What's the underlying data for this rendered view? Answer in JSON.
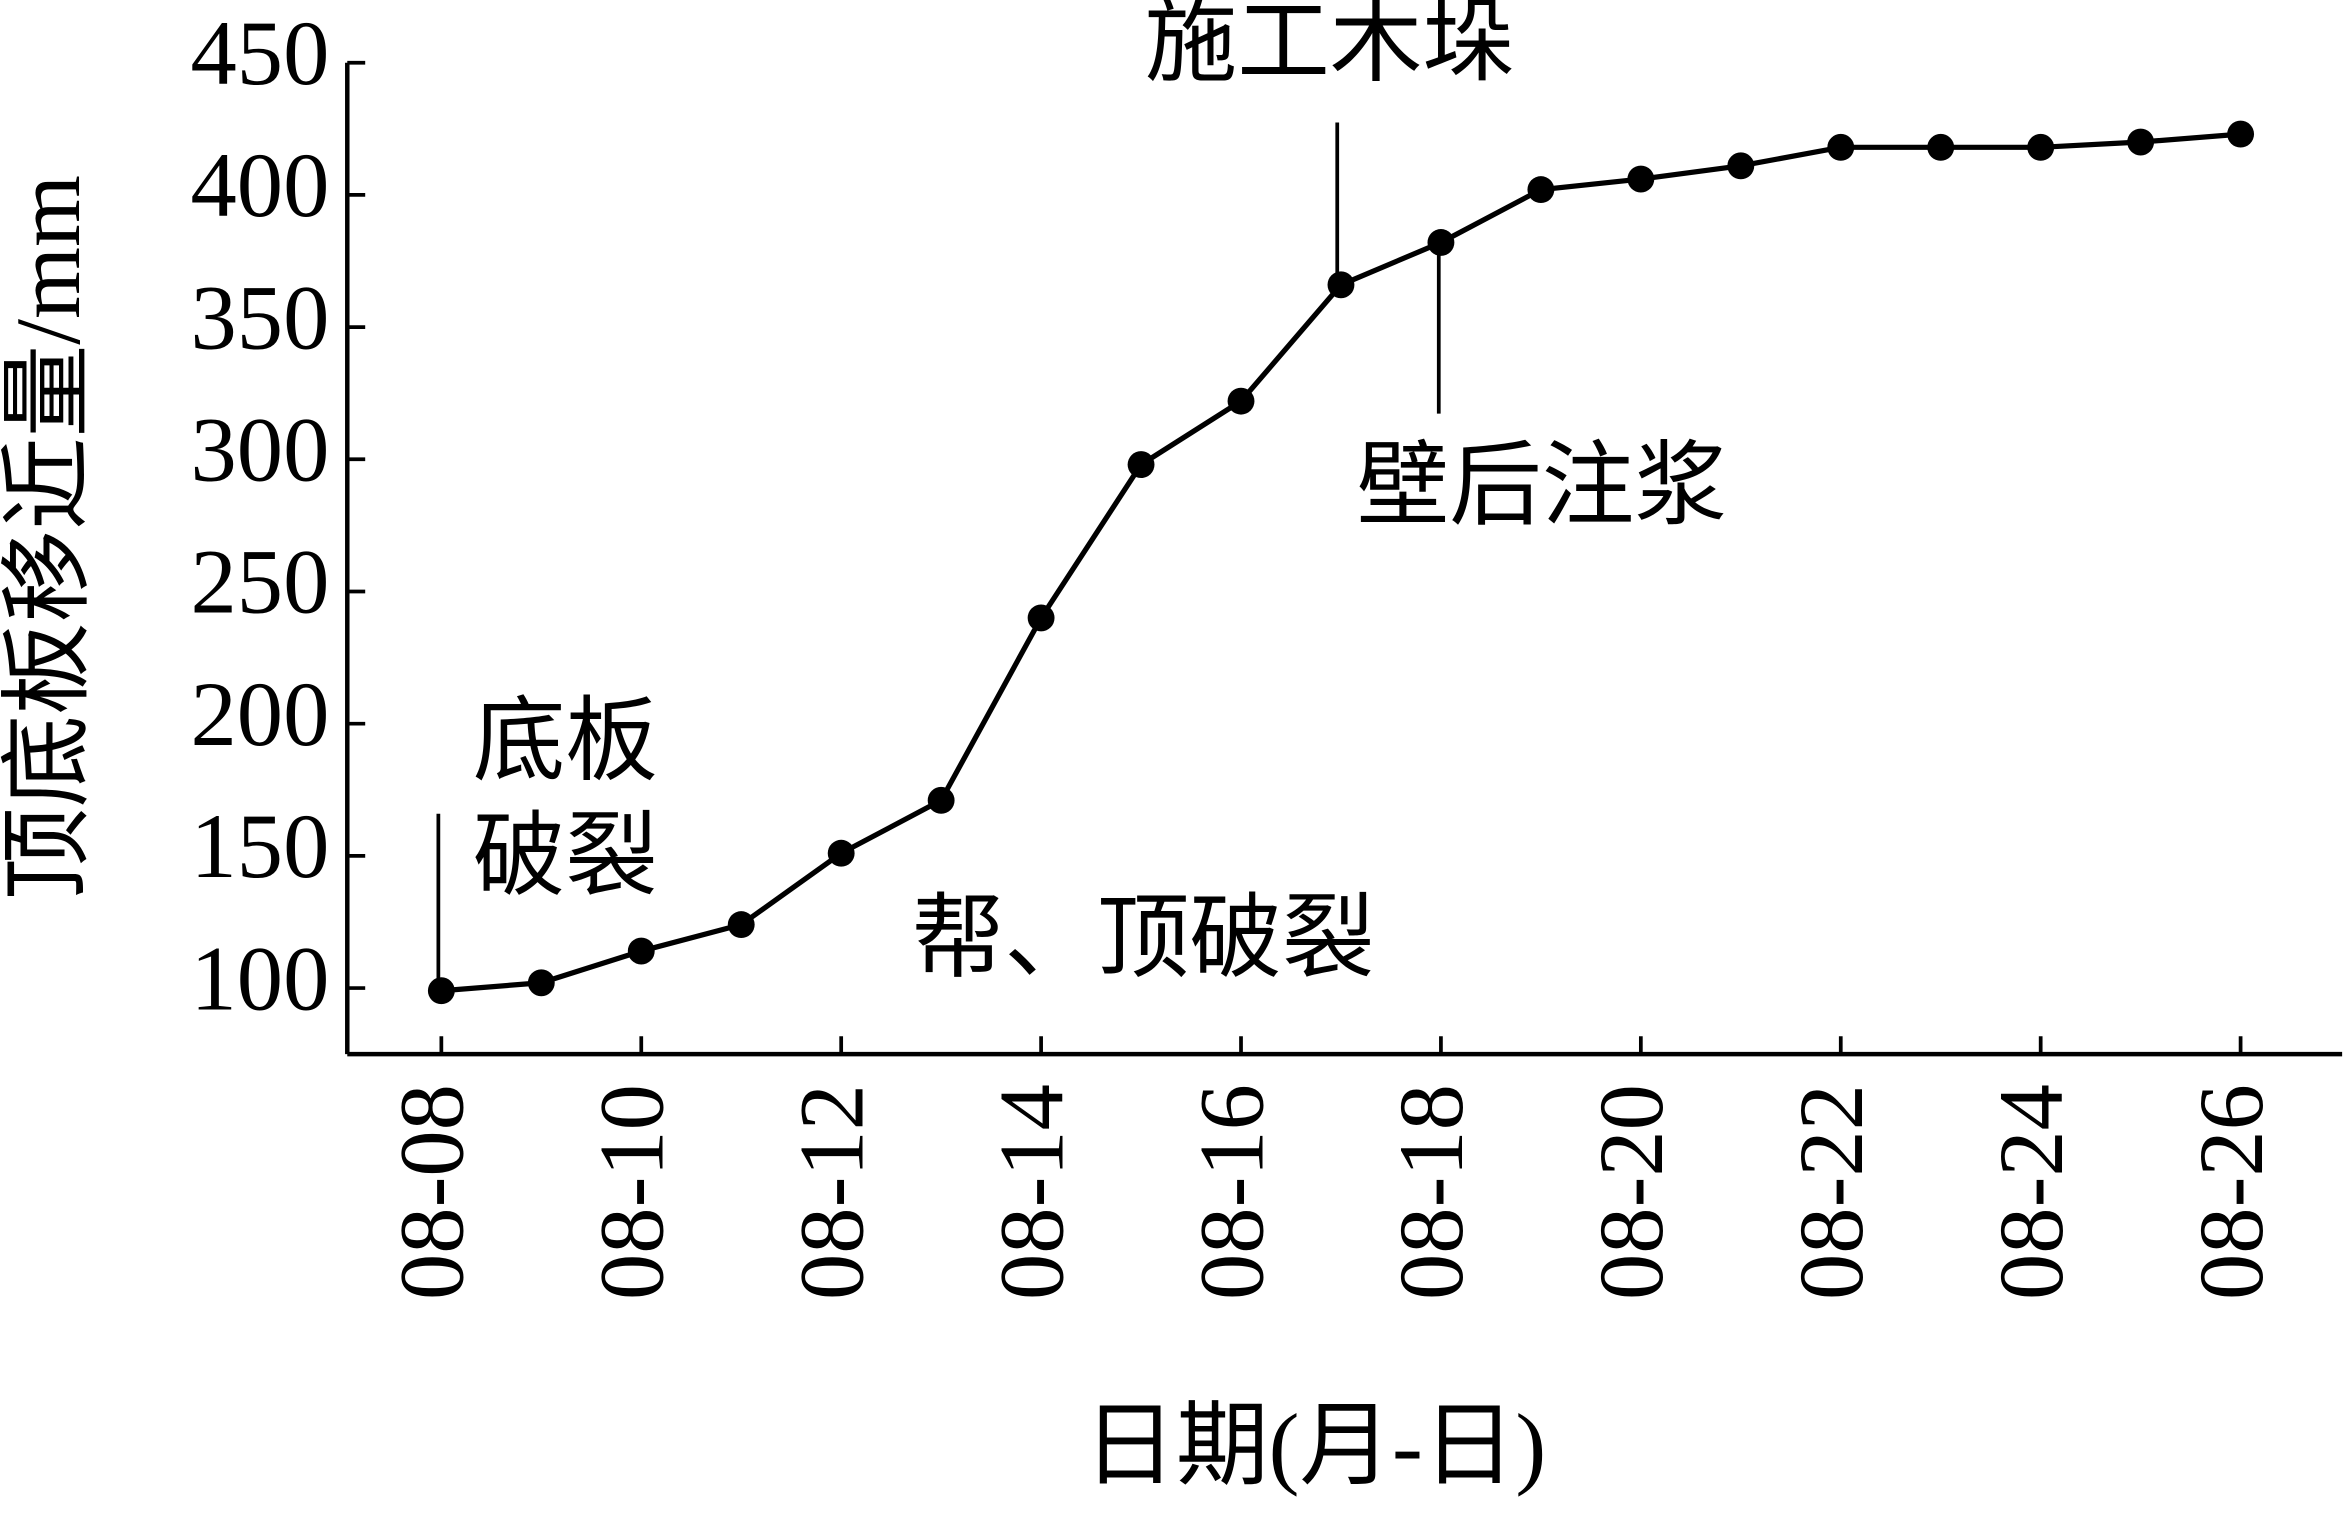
{
  "chart_data": {
    "type": "line",
    "x_label": "日期(月-日)",
    "y_label": "顶底板移近量/mm",
    "categories": [
      "08-08",
      null,
      "08-10",
      null,
      "08-12",
      null,
      "08-14",
      null,
      "08-16",
      null,
      "08-18",
      null,
      "08-20",
      null,
      "08-22",
      null,
      "08-24",
      null,
      "08-26"
    ],
    "series": [
      {
        "color": "#000000",
        "values": [
          99,
          102,
          114,
          124,
          151,
          171,
          240,
          298,
          322,
          366,
          382,
          402,
          406,
          411,
          418,
          418,
          418,
          420,
          423
        ]
      }
    ],
    "ylim": [
      75,
      450
    ],
    "yticks": [
      100,
      150,
      200,
      250,
      300,
      350,
      400,
      450
    ],
    "annotations": [
      {
        "lines": [
          "施工木垛"
        ]
      },
      {
        "lines": [
          "壁后注浆"
        ]
      },
      {
        "lines": [
          "底板",
          "破裂"
        ]
      },
      {
        "lines": [
          "帮、顶破裂"
        ]
      }
    ]
  }
}
